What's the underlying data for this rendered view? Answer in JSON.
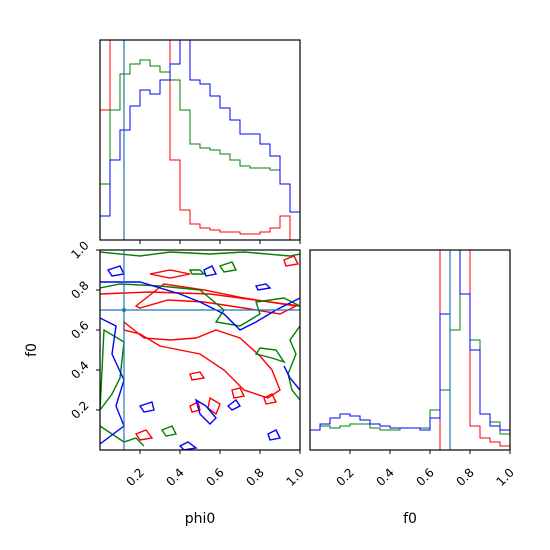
{
  "chart_data": {
    "type": "corner",
    "parameters": [
      "phi0",
      "f0"
    ],
    "xlabel": "phi0",
    "ylabel": "f0",
    "xlabel_right": "f0",
    "truth": {
      "phi0": 0.12,
      "f0": 0.7
    },
    "series_colors": [
      "#ff0000",
      "#008000",
      "#0000ff"
    ],
    "truth_color": "#1f77b4",
    "axes": {
      "phi0_range": [
        0.0,
        1.0
      ],
      "f0_range": [
        0.0,
        1.0
      ],
      "ticks": [
        "0.2",
        "0.4",
        "0.6",
        "0.8",
        "1.0"
      ],
      "ticks_f0_y": [
        "0.2",
        "0.4",
        "0.6",
        "0.8",
        "1.0"
      ]
    },
    "hist_phi0": {
      "bins": [
        0.0,
        0.05,
        0.1,
        0.15,
        0.2,
        0.25,
        0.3,
        0.35,
        0.4,
        0.45,
        0.5,
        0.55,
        0.6,
        0.65,
        0.7,
        0.75,
        0.8,
        0.85,
        0.9,
        0.95,
        1.0
      ],
      "series": [
        {
          "values": [
            0.65,
            1.0,
            1.0,
            1.0,
            1.0,
            1.0,
            1.0,
            0.4,
            0.15,
            0.08,
            0.06,
            0.05,
            0.04,
            0.04,
            0.03,
            0.03,
            0.04,
            0.06,
            0.12,
            0.0
          ]
        },
        {
          "values": [
            0.28,
            0.65,
            0.83,
            0.88,
            0.9,
            0.87,
            0.84,
            0.8,
            0.65,
            0.48,
            0.46,
            0.45,
            0.43,
            0.4,
            0.37,
            0.36,
            0.36,
            0.35,
            0.28,
            0.14
          ]
        },
        {
          "values": [
            0.12,
            0.4,
            0.55,
            0.67,
            0.75,
            0.73,
            0.8,
            0.88,
            1.0,
            0.8,
            0.78,
            0.72,
            0.66,
            0.6,
            0.53,
            0.53,
            0.48,
            0.42,
            0.28,
            0.14
          ]
        }
      ]
    },
    "hist_f0": {
      "bins": [
        0.0,
        0.05,
        0.1,
        0.15,
        0.2,
        0.25,
        0.3,
        0.35,
        0.4,
        0.45,
        0.5,
        0.55,
        0.6,
        0.65,
        0.7,
        0.75,
        0.8,
        0.85,
        0.9,
        0.95,
        1.0
      ],
      "series": [
        {
          "values": [
            0.0,
            0.0,
            0.0,
            0.0,
            0.0,
            0.0,
            0.0,
            0.0,
            0.0,
            0.0,
            0.0,
            0.0,
            0.0,
            1.0,
            1.0,
            1.0,
            0.12,
            0.06,
            0.04,
            0.02
          ]
        },
        {
          "values": [
            0.1,
            0.12,
            0.11,
            0.12,
            0.13,
            0.13,
            0.11,
            0.1,
            0.1,
            0.11,
            0.11,
            0.11,
            0.2,
            0.3,
            0.6,
            0.78,
            0.55,
            0.18,
            0.14,
            0.08
          ]
        },
        {
          "values": [
            0.1,
            0.13,
            0.16,
            0.18,
            0.17,
            0.15,
            0.13,
            0.12,
            0.11,
            0.11,
            0.11,
            0.1,
            0.16,
            0.68,
            1.0,
            0.78,
            0.5,
            0.18,
            0.12,
            0.1
          ]
        }
      ]
    },
    "contours": [
      {
        "series": 0,
        "points": [
          [
            0.18,
            0.72
          ],
          [
            0.32,
            0.83
          ],
          [
            0.52,
            0.8
          ],
          [
            0.72,
            0.76
          ],
          [
            0.98,
            0.72
          ],
          [
            0.9,
            0.68
          ],
          [
            0.72,
            0.71
          ],
          [
            0.52,
            0.74
          ],
          [
            0.34,
            0.75
          ],
          [
            0.2,
            0.71
          ]
        ]
      },
      {
        "series": 0,
        "points": [
          [
            0.12,
            0.64
          ],
          [
            0.22,
            0.56
          ],
          [
            0.35,
            0.55
          ],
          [
            0.48,
            0.56
          ],
          [
            0.58,
            0.6
          ],
          [
            0.7,
            0.56
          ],
          [
            0.8,
            0.47
          ],
          [
            0.86,
            0.4
          ],
          [
            0.9,
            0.3
          ],
          [
            0.84,
            0.26
          ],
          [
            0.72,
            0.3
          ],
          [
            0.62,
            0.4
          ],
          [
            0.5,
            0.48
          ],
          [
            0.4,
            0.5
          ],
          [
            0.3,
            0.52
          ],
          [
            0.2,
            0.58
          ],
          [
            0.12,
            0.6
          ]
        ]
      },
      {
        "series": 0,
        "points": [
          [
            0.25,
            0.88
          ],
          [
            0.35,
            0.9
          ],
          [
            0.45,
            0.88
          ],
          [
            0.35,
            0.86
          ]
        ]
      },
      {
        "series": 0,
        "points": [
          [
            0.45,
            0.22
          ],
          [
            0.49,
            0.24
          ],
          [
            0.5,
            0.2
          ],
          [
            0.46,
            0.19
          ]
        ]
      },
      {
        "series": 0,
        "points": [
          [
            0.55,
            0.26
          ],
          [
            0.6,
            0.23
          ],
          [
            0.58,
            0.18
          ],
          [
            0.54,
            0.21
          ]
        ]
      },
      {
        "series": 0,
        "points": [
          [
            0.66,
            0.3
          ],
          [
            0.7,
            0.31
          ],
          [
            0.72,
            0.27
          ],
          [
            0.67,
            0.26
          ]
        ]
      },
      {
        "series": 0,
        "points": [
          [
            0.82,
            0.26
          ],
          [
            0.86,
            0.28
          ],
          [
            0.88,
            0.24
          ],
          [
            0.83,
            0.23
          ]
        ]
      },
      {
        "series": 0,
        "points": [
          [
            0.45,
            0.38
          ],
          [
            0.5,
            0.39
          ],
          [
            0.52,
            0.36
          ],
          [
            0.46,
            0.35
          ]
        ]
      },
      {
        "series": 0,
        "points": [
          [
            0.18,
            0.08
          ],
          [
            0.23,
            0.1
          ],
          [
            0.26,
            0.06
          ],
          [
            0.2,
            0.05
          ]
        ]
      },
      {
        "series": 0,
        "points": [
          [
            0.92,
            0.95
          ],
          [
            0.97,
            0.97
          ],
          [
            0.99,
            0.93
          ],
          [
            0.93,
            0.92
          ]
        ]
      },
      {
        "series": 0,
        "points": [
          [
            0.0,
            0.78
          ],
          [
            0.25,
            0.79
          ],
          [
            0.55,
            0.78
          ],
          [
            0.85,
            0.74
          ],
          [
            1.0,
            0.72
          ]
        ]
      },
      {
        "series": 1,
        "points": [
          [
            0.0,
            0.99
          ],
          [
            0.2,
            0.97
          ],
          [
            0.35,
            0.99
          ],
          [
            0.55,
            0.98
          ],
          [
            0.72,
            0.99
          ],
          [
            0.95,
            0.97
          ],
          [
            1.0,
            0.98
          ]
        ]
      },
      {
        "series": 1,
        "points": [
          [
            0.0,
            0.81
          ],
          [
            0.1,
            0.83
          ],
          [
            0.3,
            0.82
          ],
          [
            0.5,
            0.8
          ],
          [
            0.62,
            0.7
          ],
          [
            0.58,
            0.64
          ],
          [
            0.7,
            0.62
          ],
          [
            0.8,
            0.68
          ],
          [
            0.78,
            0.74
          ],
          [
            0.92,
            0.76
          ],
          [
            1.0,
            0.72
          ]
        ]
      },
      {
        "series": 1,
        "points": [
          [
            0.02,
            0.6
          ],
          [
            0.12,
            0.54
          ],
          [
            0.1,
            0.36
          ],
          [
            0.06,
            0.28
          ],
          [
            0.0,
            0.2
          ]
        ]
      },
      {
        "series": 1,
        "points": [
          [
            1.0,
            0.62
          ],
          [
            0.95,
            0.55
          ],
          [
            0.98,
            0.48
          ],
          [
            0.94,
            0.38
          ],
          [
            0.96,
            0.3
          ],
          [
            1.0,
            0.25
          ]
        ]
      },
      {
        "series": 1,
        "points": [
          [
            0.78,
            0.48
          ],
          [
            0.86,
            0.46
          ],
          [
            0.92,
            0.44
          ],
          [
            0.88,
            0.5
          ],
          [
            0.8,
            0.51
          ]
        ]
      },
      {
        "series": 1,
        "points": [
          [
            0.0,
            0.12
          ],
          [
            0.06,
            0.08
          ],
          [
            0.12,
            0.04
          ],
          [
            0.18,
            0.06
          ],
          [
            0.22,
            0.02
          ]
        ]
      },
      {
        "series": 1,
        "points": [
          [
            0.31,
            0.1
          ],
          [
            0.36,
            0.12
          ],
          [
            0.38,
            0.08
          ],
          [
            0.33,
            0.07
          ]
        ]
      },
      {
        "series": 1,
        "points": [
          [
            0.45,
            0.9
          ],
          [
            0.5,
            0.9
          ],
          [
            0.52,
            0.88
          ],
          [
            0.46,
            0.88
          ]
        ]
      },
      {
        "series": 1,
        "points": [
          [
            0.6,
            0.92
          ],
          [
            0.66,
            0.94
          ],
          [
            0.68,
            0.9
          ],
          [
            0.62,
            0.89
          ]
        ]
      },
      {
        "series": 2,
        "points": [
          [
            0.0,
            0.84
          ],
          [
            0.2,
            0.84
          ],
          [
            0.4,
            0.78
          ],
          [
            0.5,
            0.74
          ],
          [
            0.62,
            0.68
          ],
          [
            0.7,
            0.6
          ],
          [
            0.78,
            0.64
          ],
          [
            0.88,
            0.7
          ],
          [
            0.96,
            0.74
          ],
          [
            1.0,
            0.76
          ]
        ]
      },
      {
        "series": 2,
        "points": [
          [
            0.0,
            0.66
          ],
          [
            0.08,
            0.62
          ],
          [
            0.06,
            0.48
          ],
          [
            0.12,
            0.35
          ],
          [
            0.08,
            0.22
          ],
          [
            0.12,
            0.12
          ],
          [
            0.04,
            0.06
          ],
          [
            0.0,
            0.03
          ]
        ]
      },
      {
        "series": 2,
        "points": [
          [
            0.92,
            0.42
          ],
          [
            0.95,
            0.36
          ],
          [
            1.0,
            0.3
          ]
        ]
      },
      {
        "series": 2,
        "points": [
          [
            0.04,
            0.9
          ],
          [
            0.1,
            0.92
          ],
          [
            0.12,
            0.88
          ],
          [
            0.06,
            0.87
          ]
        ]
      },
      {
        "series": 2,
        "points": [
          [
            0.52,
            0.9
          ],
          [
            0.56,
            0.92
          ],
          [
            0.58,
            0.88
          ],
          [
            0.53,
            0.87
          ]
        ]
      },
      {
        "series": 2,
        "points": [
          [
            0.78,
            0.82
          ],
          [
            0.83,
            0.83
          ],
          [
            0.85,
            0.81
          ],
          [
            0.79,
            0.8
          ]
        ]
      },
      {
        "series": 2,
        "points": [
          [
            0.48,
            0.25
          ],
          [
            0.53,
            0.22
          ],
          [
            0.58,
            0.16
          ],
          [
            0.55,
            0.13
          ],
          [
            0.5,
            0.18
          ]
        ]
      },
      {
        "series": 2,
        "points": [
          [
            0.64,
            0.22
          ],
          [
            0.68,
            0.25
          ],
          [
            0.7,
            0.22
          ],
          [
            0.66,
            0.2
          ]
        ]
      },
      {
        "series": 2,
        "points": [
          [
            0.2,
            0.22
          ],
          [
            0.26,
            0.24
          ],
          [
            0.27,
            0.2
          ],
          [
            0.22,
            0.19
          ]
        ]
      },
      {
        "series": 2,
        "points": [
          [
            0.84,
            0.08
          ],
          [
            0.88,
            0.1
          ],
          [
            0.9,
            0.06
          ],
          [
            0.85,
            0.05
          ]
        ]
      },
      {
        "series": 2,
        "points": [
          [
            0.4,
            0.02
          ],
          [
            0.44,
            0.04
          ],
          [
            0.48,
            0.01
          ],
          [
            0.42,
            0.0
          ]
        ]
      }
    ]
  }
}
